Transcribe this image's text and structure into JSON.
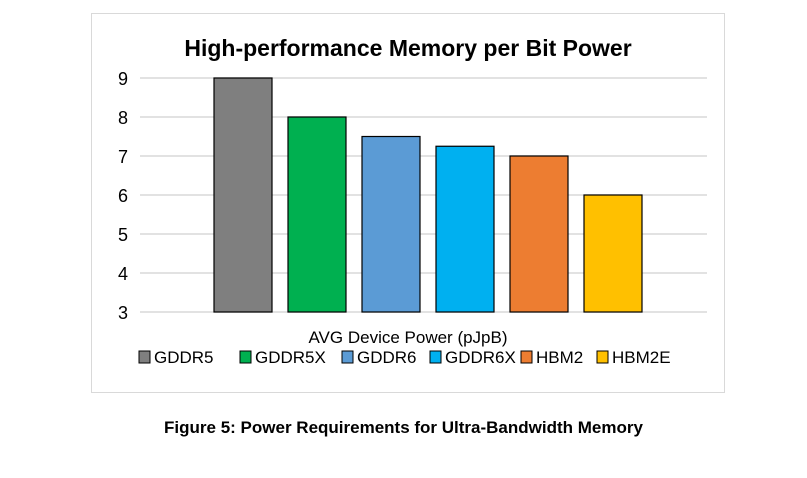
{
  "chart_data": {
    "type": "bar",
    "title": "High-performance Memory per Bit Power",
    "xlabel": "AVG Device Power (pJpB)",
    "ylabel": "",
    "ylim": [
      3,
      9
    ],
    "yticks": [
      "3",
      "4",
      "5",
      "6",
      "7",
      "8",
      "9"
    ],
    "grid": true,
    "legend_position": "bottom",
    "categories": [
      "GDDR5",
      "GDDR5X",
      "GDDR6",
      "GDDR6X",
      "HBM2",
      "HBM2E"
    ],
    "values": [
      9,
      8,
      7.5,
      7.25,
      7,
      6
    ],
    "colors": [
      "#7f7f7f",
      "#00b050",
      "#5b9bd5",
      "#00b0f0",
      "#ed7d31",
      "#ffc000"
    ]
  },
  "caption": "Figure 5: Power Requirements for Ultra-Bandwidth Memory"
}
